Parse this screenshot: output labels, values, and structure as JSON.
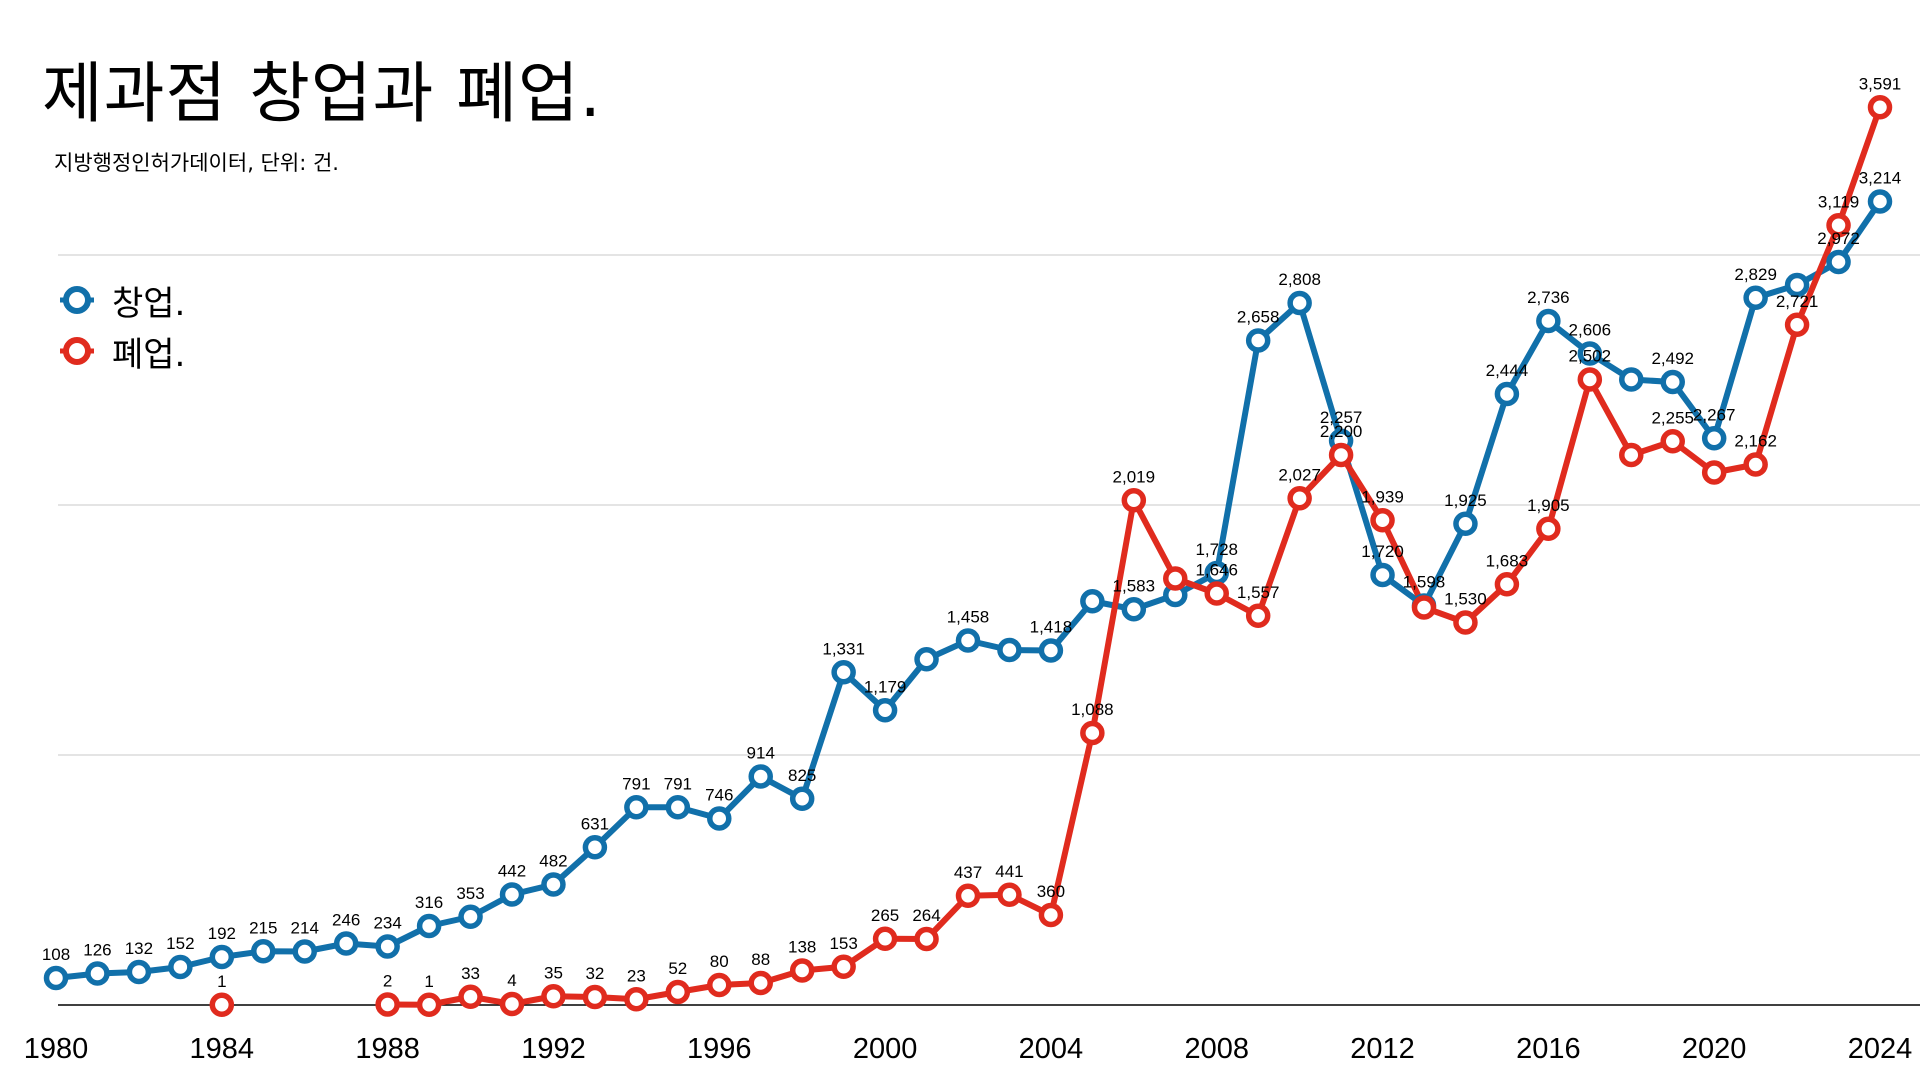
{
  "colors": {
    "series_0": "#1170AA",
    "series_1": "#E02B1E",
    "grid": "#C8C8C8",
    "axis": "#000000"
  },
  "chart_data": {
    "type": "line",
    "title": "제과점 창업과 폐업.",
    "subtitle": "지방행정인허가데이터, 단위: 건.",
    "xlabel": "",
    "ylabel": "",
    "xlim": [
      1980,
      2024
    ],
    "ylim": [
      0,
      4000
    ],
    "x_ticks": [
      "1980",
      "1984",
      "1988",
      "1992",
      "1996",
      "2000",
      "2004",
      "2008",
      "2012",
      "2016",
      "2020",
      "2024"
    ],
    "grid": "horizontal",
    "legend_position": "top-left",
    "series": [
      {
        "name": "창업.",
        "x": [
          1980,
          1981,
          1982,
          1983,
          1984,
          1985,
          1986,
          1987,
          1988,
          1989,
          1990,
          1991,
          1992,
          1993,
          1994,
          1995,
          1996,
          1997,
          1998,
          1999,
          2000,
          2001,
          2002,
          2003,
          2004,
          2005,
          2006,
          2007,
          2008,
          2009,
          2010,
          2011,
          2012,
          2013,
          2014,
          2015,
          2016,
          2017,
          2018,
          2019,
          2020,
          2021,
          2022,
          2023,
          2024
        ],
        "values": [
          108,
          126,
          132,
          152,
          192,
          215,
          214,
          246,
          234,
          316,
          353,
          442,
          482,
          631,
          791,
          791,
          746,
          914,
          825,
          1331,
          1179,
          1383,
          1458,
          1420,
          1418,
          1615,
          1583,
          1640,
          1728,
          2658,
          2808,
          2257,
          1720,
          1598,
          1925,
          2444,
          2736,
          2606,
          2502,
          2492,
          2267,
          2829,
          2880,
          2972,
          3214
        ],
        "labels": [
          "108",
          "126",
          "132",
          "152",
          "192",
          "215",
          "214",
          "246",
          "234",
          "316",
          "353",
          "442",
          "482",
          "631",
          "791",
          "791",
          "746",
          "914",
          "825",
          "1,331",
          "1,179",
          "",
          "1,458",
          "",
          "1,418",
          "",
          "1,583",
          "",
          "1,728",
          "2,658",
          "2,808",
          "2,257",
          "1,720",
          "1,598",
          "1,925",
          "2,444",
          "2,736",
          "2,606",
          "",
          "2,492",
          "2,267",
          "2,829",
          "",
          "2,972",
          "3,214"
        ]
      },
      {
        "name": "폐업.",
        "x": [
          1984,
          1988,
          1989,
          1990,
          1991,
          1992,
          1993,
          1994,
          1995,
          1996,
          1997,
          1998,
          1999,
          2000,
          2001,
          2002,
          2003,
          2004,
          2005,
          2006,
          2007,
          2008,
          2009,
          2010,
          2011,
          2012,
          2013,
          2014,
          2015,
          2016,
          2017,
          2018,
          2019,
          2020,
          2021,
          2022,
          2023,
          2024
        ],
        "values": [
          1,
          2,
          1,
          33,
          4,
          35,
          32,
          23,
          52,
          80,
          88,
          138,
          153,
          265,
          264,
          437,
          441,
          360,
          1088,
          2019,
          1706,
          1646,
          1557,
          2027,
          2200,
          1939,
          1590,
          1530,
          1683,
          1905,
          2502,
          2200,
          2255,
          2130,
          2162,
          2721,
          3119,
          3591
        ],
        "labels": [
          "1",
          "2",
          "1",
          "33",
          "4",
          "35",
          "32",
          "23",
          "52",
          "80",
          "88",
          "138",
          "153",
          "265",
          "264",
          "437",
          "441",
          "360",
          "1,088",
          "2,019",
          "",
          "1,646",
          "1,557",
          "2,027",
          "2,200",
          "1,939",
          "",
          "1,530",
          "1,683",
          "1,905",
          "2,502",
          "",
          "2,255",
          "",
          "2,162",
          "2,721",
          "3,119",
          "3,591"
        ]
      }
    ]
  }
}
